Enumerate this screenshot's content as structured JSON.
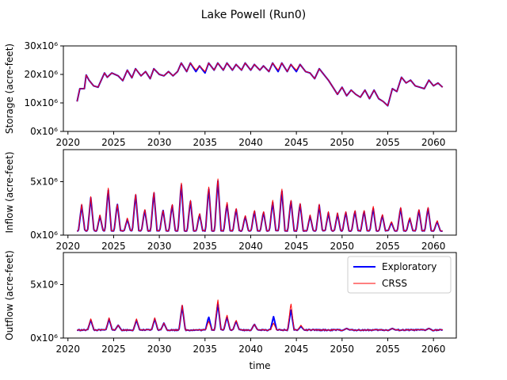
{
  "figure": {
    "title": "Lake Powell (Run0)"
  },
  "legend": {
    "placement": "upper-right of bottom panel",
    "entries": [
      "Exploratory",
      "CRSS"
    ]
  },
  "colors": {
    "exploratory": "#0000ff",
    "crss": "#ff0000",
    "axes": "#000000",
    "background": "#ffffff"
  },
  "chart_data": [
    {
      "type": "line",
      "ylabel": "Storage (acre-feet)",
      "xlabel": "",
      "xlim": [
        2019.5,
        2062.5
      ],
      "ylim": [
        0,
        30000000
      ],
      "x_ticks": [
        2020,
        2025,
        2030,
        2035,
        2040,
        2045,
        2050,
        2055,
        2060
      ],
      "x_tick_labels": [
        "2020",
        "2025",
        "2030",
        "2035",
        "2040",
        "2045",
        "2050",
        "2055",
        "2060"
      ],
      "y_ticks": [
        0,
        10000000,
        20000000,
        30000000
      ],
      "y_tick_labels": [
        "0x10⁶",
        "10x10⁶",
        "20x10⁶",
        "30x10⁶"
      ],
      "series": [
        {
          "name": "Exploratory",
          "x": [
            2021.0,
            2021.3,
            2021.8,
            2022.0,
            2022.3,
            2022.8,
            2023.3,
            2024.0,
            2024.3,
            2024.8,
            2025.5,
            2026.0,
            2026.5,
            2027.0,
            2027.4,
            2028.0,
            2028.5,
            2029.0,
            2029.4,
            2030.0,
            2030.5,
            2031.0,
            2031.5,
            2032.0,
            2032.4,
            2033.0,
            2033.4,
            2034.0,
            2034.4,
            2035.0,
            2035.4,
            2036.0,
            2036.4,
            2037.0,
            2037.4,
            2038.0,
            2038.4,
            2039.0,
            2039.4,
            2040.0,
            2040.4,
            2041.0,
            2041.4,
            2042.0,
            2042.4,
            2043.0,
            2043.4,
            2044.0,
            2044.4,
            2045.0,
            2045.4,
            2046.0,
            2046.5,
            2047.0,
            2047.5,
            2048.0,
            2048.5,
            2049.0,
            2049.5,
            2050.0,
            2050.5,
            2051.0,
            2051.5,
            2052.0,
            2052.5,
            2053.0,
            2053.5,
            2054.0,
            2054.5,
            2055.0,
            2055.5,
            2056.0,
            2056.5,
            2057.0,
            2057.5,
            2058.0,
            2058.5,
            2059.0,
            2059.5,
            2060.0,
            2060.5,
            2061.0
          ],
          "values": [
            10500000,
            15000000,
            15000000,
            19800000,
            18000000,
            16000000,
            15500000,
            20500000,
            19000000,
            20500000,
            19500000,
            17800000,
            21500000,
            18800000,
            22000000,
            19500000,
            21000000,
            18500000,
            22000000,
            20000000,
            19500000,
            21000000,
            19500000,
            21000000,
            24000000,
            21000000,
            24000000,
            21000000,
            23000000,
            20500000,
            24000000,
            21500000,
            24000000,
            21500000,
            24000000,
            21500000,
            23500000,
            21500000,
            24000000,
            21500000,
            23500000,
            21500000,
            23000000,
            21000000,
            24000000,
            21000000,
            24000000,
            21000000,
            23500000,
            21000000,
            23500000,
            21000000,
            20500000,
            18500000,
            22000000,
            20000000,
            18000000,
            15500000,
            13000000,
            15500000,
            12500000,
            14500000,
            13000000,
            12000000,
            14500000,
            11500000,
            14500000,
            11500000,
            10500000,
            9000000,
            15000000,
            14000000,
            19000000,
            17000000,
            18000000,
            16000000,
            15500000,
            15000000,
            18000000,
            16000000,
            17000000,
            15500000
          ]
        },
        {
          "name": "CRSS",
          "x": [
            2021.0,
            2021.3,
            2021.8,
            2022.0,
            2022.3,
            2022.8,
            2023.3,
            2024.0,
            2024.3,
            2024.8,
            2025.5,
            2026.0,
            2026.5,
            2027.0,
            2027.4,
            2028.0,
            2028.5,
            2029.0,
            2029.4,
            2030.0,
            2030.5,
            2031.0,
            2031.5,
            2032.0,
            2032.4,
            2033.0,
            2033.4,
            2034.0,
            2034.4,
            2035.0,
            2035.4,
            2036.0,
            2036.4,
            2037.0,
            2037.4,
            2038.0,
            2038.4,
            2039.0,
            2039.4,
            2040.0,
            2040.4,
            2041.0,
            2041.4,
            2042.0,
            2042.4,
            2043.0,
            2043.4,
            2044.0,
            2044.4,
            2045.0,
            2045.4,
            2046.0,
            2046.5,
            2047.0,
            2047.5,
            2048.0,
            2048.5,
            2049.0,
            2049.5,
            2050.0,
            2050.5,
            2051.0,
            2051.5,
            2052.0,
            2052.5,
            2053.0,
            2053.5,
            2054.0,
            2054.5,
            2055.0,
            2055.5,
            2056.0,
            2056.5,
            2057.0,
            2057.5,
            2058.0,
            2058.5,
            2059.0,
            2059.5,
            2060.0,
            2060.5,
            2061.0
          ],
          "values": [
            10500000,
            15000000,
            15000000,
            19800000,
            18000000,
            16000000,
            15500000,
            20500000,
            19000000,
            20500000,
            19500000,
            17800000,
            21500000,
            18800000,
            22000000,
            19500000,
            21000000,
            18500000,
            22000000,
            20000000,
            19500000,
            21000000,
            19500000,
            21000000,
            24000000,
            21000000,
            24000000,
            21500000,
            23000000,
            21000000,
            24000000,
            21500000,
            24000000,
            21500000,
            24000000,
            21500000,
            23500000,
            21500000,
            24000000,
            21500000,
            23500000,
            21500000,
            23000000,
            21000000,
            24000000,
            21500000,
            24000000,
            21000000,
            23500000,
            21500000,
            23500000,
            21000000,
            20500000,
            18500000,
            22000000,
            20000000,
            18000000,
            15500000,
            13000000,
            15500000,
            12500000,
            14500000,
            13000000,
            12000000,
            14500000,
            11500000,
            14500000,
            11500000,
            10500000,
            9000000,
            15000000,
            14000000,
            19000000,
            17000000,
            18000000,
            16000000,
            15500000,
            15000000,
            18000000,
            16000000,
            17000000,
            15500000
          ]
        }
      ]
    },
    {
      "type": "line",
      "ylabel": "Inflow (acre-feet)",
      "xlabel": "",
      "xlim": [
        2019.5,
        2062.5
      ],
      "ylim": [
        0,
        8000000
      ],
      "x_ticks": [
        2020,
        2025,
        2030,
        2035,
        2040,
        2045,
        2050,
        2055,
        2060
      ],
      "x_tick_labels": [
        "2020",
        "2025",
        "2030",
        "2035",
        "2040",
        "2045",
        "2050",
        "2055",
        "2060"
      ],
      "y_ticks": [
        0,
        5000000
      ],
      "y_tick_labels": [
        "0x10⁶",
        "5x10⁶"
      ],
      "base": 400000,
      "series": [
        {
          "name": "Exploratory",
          "peak_x": [
            2021.5,
            2022.5,
            2023.5,
            2024.4,
            2025.4,
            2026.5,
            2027.4,
            2028.4,
            2029.4,
            2030.4,
            2031.4,
            2032.4,
            2033.4,
            2034.4,
            2035.4,
            2036.4,
            2037.4,
            2038.4,
            2039.4,
            2040.4,
            2041.4,
            2042.4,
            2043.4,
            2044.4,
            2045.4,
            2046.5,
            2047.5,
            2048.5,
            2049.5,
            2050.4,
            2051.4,
            2052.4,
            2053.4,
            2054.4,
            2055.4,
            2056.4,
            2057.4,
            2058.4,
            2059.4,
            2060.4
          ],
          "peak_values": [
            2800000,
            3500000,
            1800000,
            4400000,
            3000000,
            1500000,
            3900000,
            2400000,
            4100000,
            2400000,
            2900000,
            4900000,
            3300000,
            2000000,
            4500000,
            5300000,
            3000000,
            2500000,
            1800000,
            2300000,
            2200000,
            3200000,
            4300000,
            3300000,
            3000000,
            1800000,
            2800000,
            2100000,
            2000000,
            2200000,
            2300000,
            2300000,
            2600000,
            1900000,
            1200000,
            2600000,
            1600000,
            2400000,
            2600000,
            1300000
          ]
        },
        {
          "name": "CRSS",
          "peak_x": [
            2021.5,
            2022.5,
            2023.5,
            2024.4,
            2025.4,
            2026.5,
            2027.4,
            2028.4,
            2029.4,
            2030.4,
            2031.4,
            2032.4,
            2033.4,
            2034.4,
            2035.4,
            2036.4,
            2037.4,
            2038.4,
            2039.4,
            2040.4,
            2041.4,
            2042.4,
            2043.4,
            2044.4,
            2045.4,
            2046.5,
            2047.5,
            2048.5,
            2049.5,
            2050.4,
            2051.4,
            2052.4,
            2053.4,
            2054.4,
            2055.4,
            2056.4,
            2057.4,
            2058.4,
            2059.4,
            2060.4
          ],
          "peak_values": [
            2900000,
            3600000,
            1900000,
            4600000,
            3000000,
            1600000,
            4000000,
            2500000,
            4200000,
            2400000,
            3000000,
            5100000,
            3400000,
            2100000,
            4700000,
            5500000,
            3200000,
            2600000,
            1900000,
            2400000,
            2300000,
            3400000,
            4500000,
            3400000,
            3100000,
            1900000,
            2900000,
            2200000,
            2100000,
            2300000,
            2400000,
            2400000,
            2800000,
            2000000,
            1300000,
            2700000,
            1700000,
            2500000,
            2700000,
            1400000
          ]
        }
      ]
    },
    {
      "type": "line",
      "ylabel": "Outflow (acre-feet)",
      "xlabel": "time",
      "xlim": [
        2019.5,
        2062.5
      ],
      "ylim": [
        0,
        8000000
      ],
      "x_ticks": [
        2020,
        2025,
        2030,
        2035,
        2040,
        2045,
        2050,
        2055,
        2060
      ],
      "x_tick_labels": [
        "2020",
        "2025",
        "2030",
        "2035",
        "2040",
        "2045",
        "2050",
        "2055",
        "2060"
      ],
      "y_ticks": [
        0,
        5000000
      ],
      "y_tick_labels": [
        "0x10⁶",
        "5x10⁶"
      ],
      "base": 750000,
      "series": [
        {
          "name": "Exploratory",
          "peak_x": [
            2022.5,
            2024.5,
            2025.5,
            2027.5,
            2029.5,
            2030.5,
            2032.5,
            2033.5,
            2035.4,
            2036.4,
            2037.4,
            2038.4,
            2040.4,
            2042.5,
            2044.4,
            2045.5,
            2050.5,
            2055.5,
            2059.5
          ],
          "peak_values": [
            1700000,
            1800000,
            1200000,
            1700000,
            1800000,
            1400000,
            3000000,
            300000,
            2000000,
            3300000,
            2000000,
            1600000,
            1300000,
            2000000,
            2700000,
            1100000,
            900000,
            900000,
            900000
          ]
        },
        {
          "name": "CRSS",
          "peak_x": [
            2022.5,
            2024.5,
            2025.5,
            2027.5,
            2029.5,
            2030.5,
            2032.5,
            2033.5,
            2035.4,
            2036.4,
            2037.4,
            2038.4,
            2040.4,
            2042.5,
            2044.4,
            2045.5,
            2050.5,
            2055.5,
            2059.5
          ],
          "peak_values": [
            1800000,
            1900000,
            1200000,
            1800000,
            1900000,
            1400000,
            3100000,
            700000,
            1600000,
            3700000,
            2200000,
            1700000,
            1300000,
            1400000,
            3300000,
            1200000,
            900000,
            900000,
            900000
          ]
        }
      ]
    }
  ]
}
